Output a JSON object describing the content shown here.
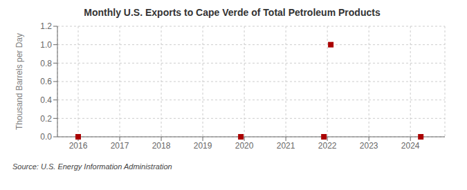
{
  "chart_data": {
    "type": "scatter",
    "title": "Monthly U.S. Exports to Cape Verde of Total Petroleum Products",
    "ylabel": "Thousand Barrels per Day",
    "annotation": "Source: U.S. Energy Information Administration",
    "x": [
      2016.0,
      2019.917,
      2021.917,
      2022.083,
      2024.25
    ],
    "values": [
      0.0,
      0.0,
      0.0,
      1.0,
      0.0
    ],
    "color": "#aa0000",
    "marker": "square",
    "xlim": [
      2015.5,
      2024.83
    ],
    "ylim": [
      0.0,
      1.2
    ],
    "xticks": [
      2016,
      2017,
      2018,
      2019,
      2020,
      2021,
      2022,
      2023,
      2024
    ],
    "yticks": [
      {
        "value": 0,
        "label": "0.0"
      },
      0.2,
      0.4,
      0.6,
      0.8,
      {
        "value": 1,
        "label": "1.0"
      },
      1.2
    ],
    "grid": true
  }
}
